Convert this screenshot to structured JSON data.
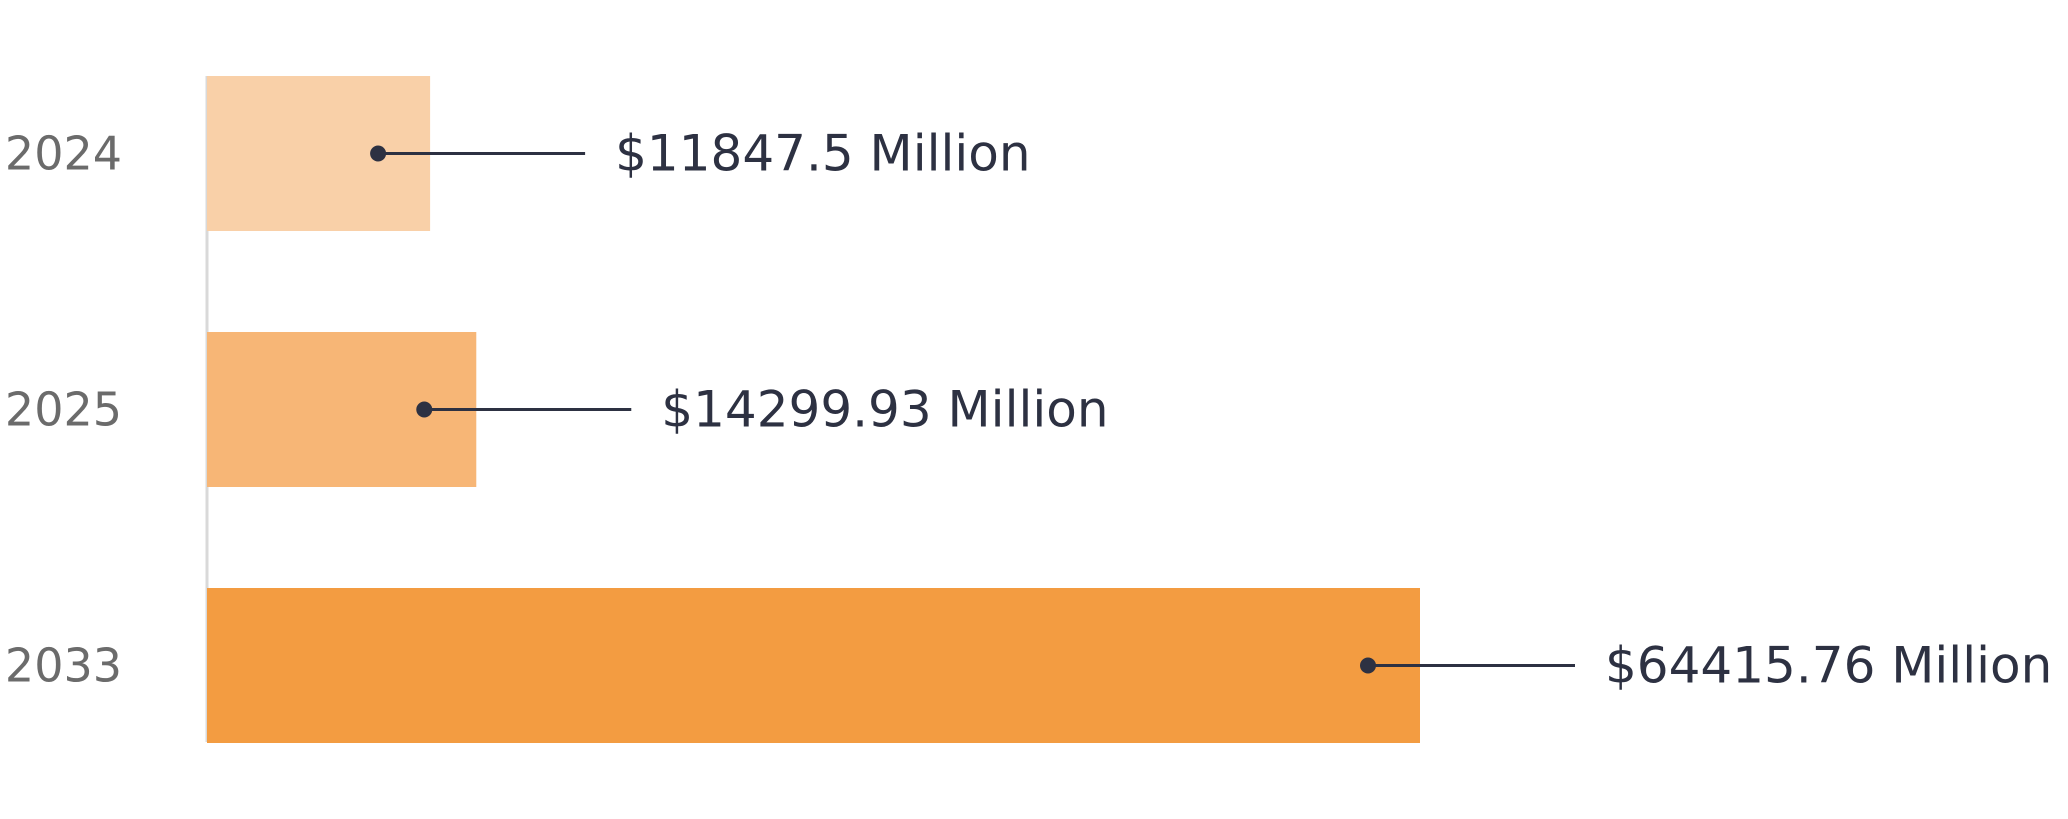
{
  "chart_data": {
    "type": "bar",
    "orientation": "horizontal",
    "categories": [
      "2024",
      "2025",
      "2033"
    ],
    "values": [
      11847.5,
      14299.93,
      64415.76
    ],
    "value_labels": [
      "$11847.5 Million",
      "$14299.93 Million",
      "$64415.76 Million"
    ],
    "bar_colors": [
      "#F9D0A8",
      "#F7B676",
      "#F39C41"
    ],
    "axis_color": "#d9d9d9",
    "connector_color": "#2d3142",
    "grid": false,
    "legend": false
  }
}
